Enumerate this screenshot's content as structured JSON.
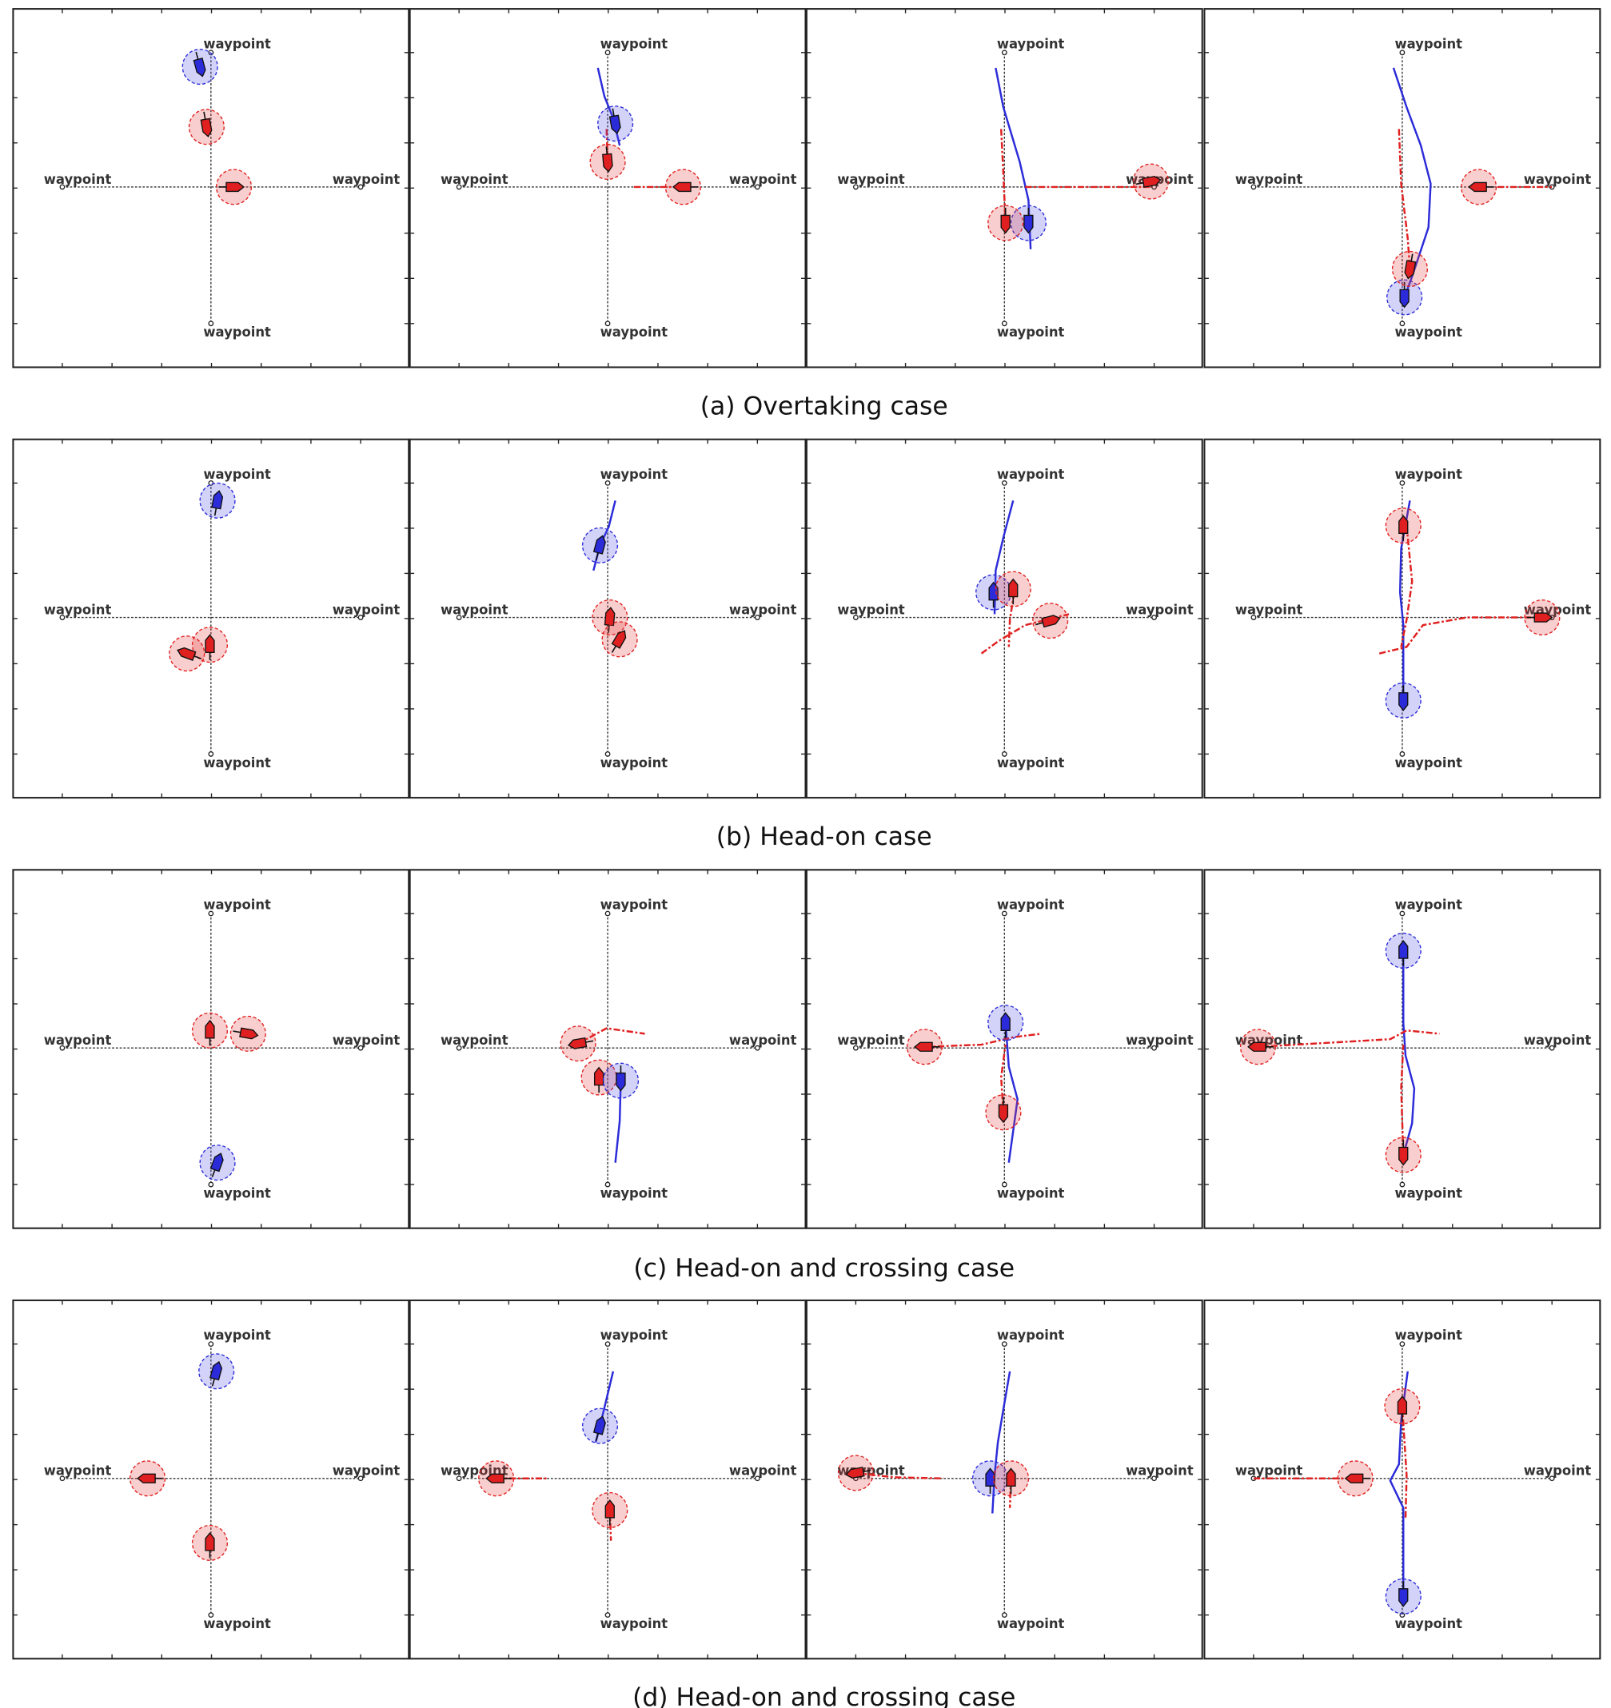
{
  "rows": [
    {
      "caption": "(a) Overtaking case",
      "panels": [
        [
          "waypoint",
          "waypoint",
          "waypoint",
          "waypoint"
        ],
        [
          "waypoint",
          "waypoint",
          "waypoint",
          "waypoint"
        ],
        [
          "waypoint",
          "waypoint",
          "waypoint",
          "waypoint"
        ],
        [
          "waypoint",
          "waypoint",
          "waypoint",
          "waypoint"
        ]
      ]
    },
    {
      "caption": "(b) Head-on case",
      "panels": [
        [
          "waypoint",
          "waypoint",
          "waypoint",
          "waypoint"
        ],
        [
          "waypoint",
          "waypoint",
          "waypoint",
          "waypoint"
        ],
        [
          "waypoint",
          "waypoint",
          "waypoint",
          "waypoint"
        ],
        [
          "waypoint",
          "waypoint",
          "waypoint",
          "waypoint"
        ]
      ]
    },
    {
      "caption": "(c) Head-on and crossing case",
      "panels": [
        [
          "waypoint",
          "waypoint",
          "waypoint",
          "waypoint"
        ],
        [
          "waypoint",
          "waypoint",
          "waypoint",
          "waypoint"
        ],
        [
          "waypoint",
          "waypoint",
          "waypoint",
          "waypoint"
        ],
        [
          "waypoint",
          "waypoint",
          "waypoint",
          "waypoint"
        ]
      ]
    },
    {
      "caption": "(d) Head-on and crossing case",
      "panels": [
        [
          "waypoint",
          "waypoint",
          "waypoint",
          "waypoint"
        ],
        [
          "waypoint",
          "waypoint",
          "waypoint",
          "waypoint"
        ],
        [
          "waypoint",
          "waypoint",
          "waypoint",
          "waypoint"
        ],
        [
          "waypoint",
          "waypoint",
          "waypoint",
          "waypoint"
        ]
      ]
    }
  ]
}
